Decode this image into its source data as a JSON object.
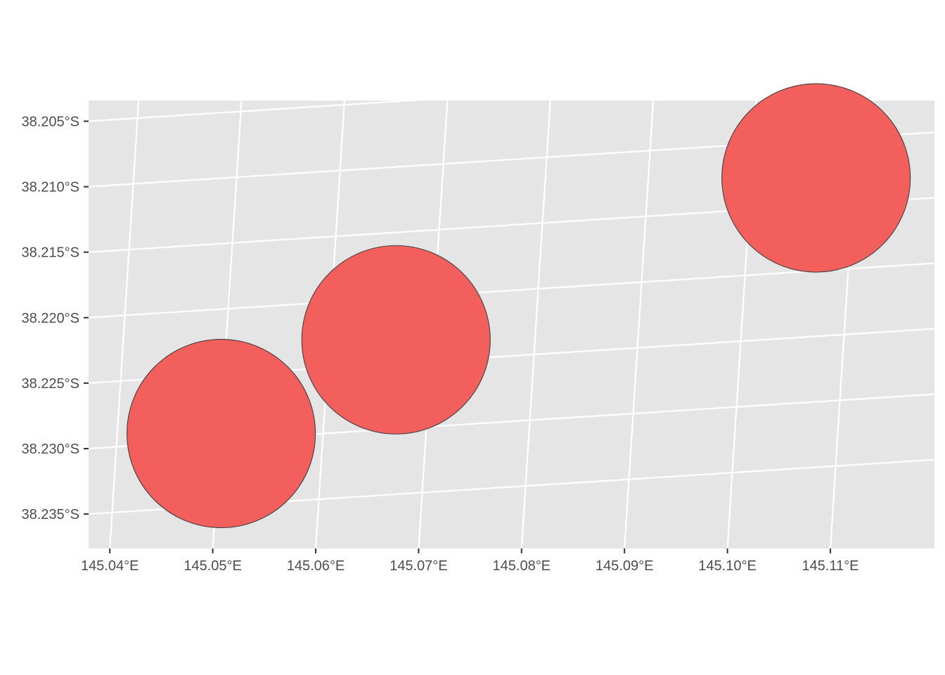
{
  "chart_data": {
    "type": "scatter",
    "title": "",
    "xlabel": "",
    "ylabel": "",
    "grid": true,
    "legend": "none",
    "colors": {
      "panel_background": "#e5e5e5",
      "gridline": "#ffffff",
      "point_fill": "#f25f5c",
      "point_outline": "#404040",
      "tick_label": "#4d4d4d",
      "tick_mark": "#333333"
    },
    "xlim": [
      145.0375,
      145.1189
    ],
    "ylim": [
      -38.2385,
      -38.2045
    ],
    "x_ticks": [
      {
        "value": 145.04,
        "label": "145.04°E"
      },
      {
        "value": 145.05,
        "label": "145.05°E"
      },
      {
        "value": 145.06,
        "label": "145.06°E"
      },
      {
        "value": 145.07,
        "label": "145.07°E"
      },
      {
        "value": 145.08,
        "label": "145.08°E"
      },
      {
        "value": 145.09,
        "label": "145.09°E"
      },
      {
        "value": 145.1,
        "label": "145.10°E"
      },
      {
        "value": 145.11,
        "label": "145.11°E"
      }
    ],
    "y_ticks": [
      {
        "value": -38.205,
        "label": "38.205°S"
      },
      {
        "value": -38.21,
        "label": "38.210°S"
      },
      {
        "value": -38.215,
        "label": "38.215°S"
      },
      {
        "value": -38.22,
        "label": "38.220°S"
      },
      {
        "value": -38.225,
        "label": "38.225°S"
      },
      {
        "value": -38.23,
        "label": "38.230°S"
      },
      {
        "value": -38.235,
        "label": "38.235°S"
      }
    ],
    "points": [
      {
        "lon": 145.0501,
        "lat": -38.2295
      },
      {
        "lon": 145.0665,
        "lat": -38.2232
      },
      {
        "lon": 145.1063,
        "lat": -38.2129
      }
    ]
  }
}
